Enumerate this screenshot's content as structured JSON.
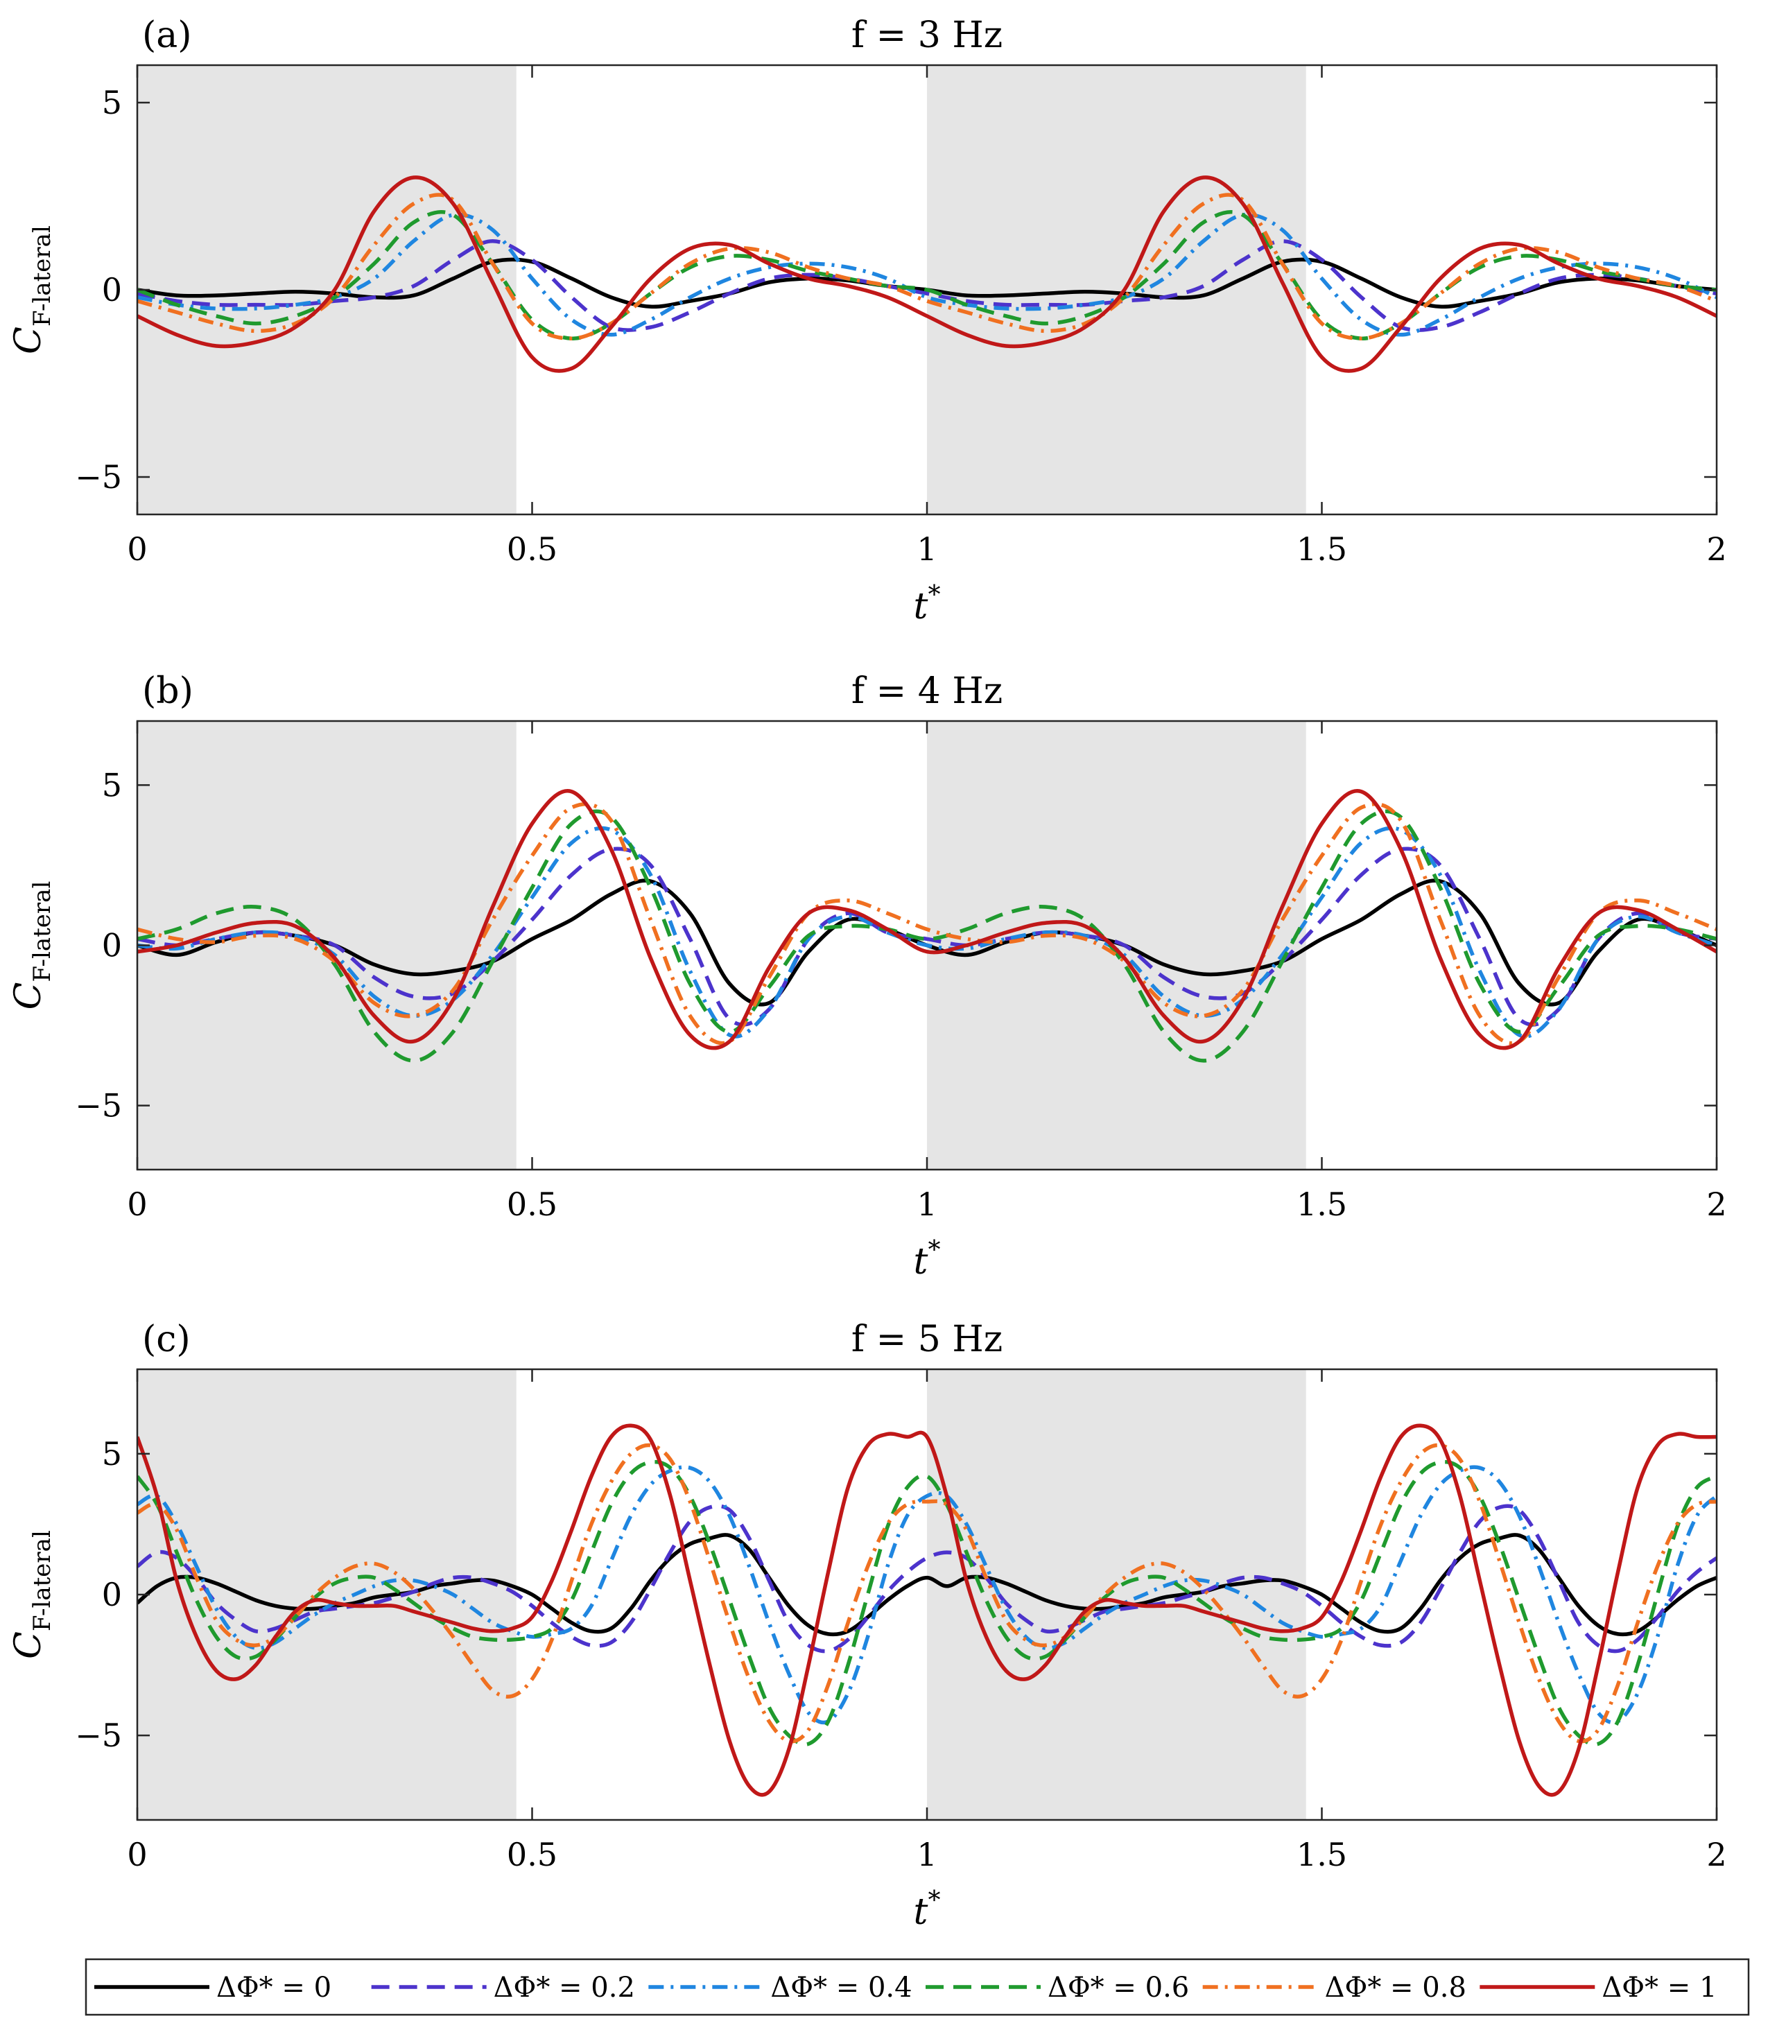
{
  "colors": {
    "shade": "#e5e5e5",
    "dphi_0": "#000000",
    "dphi_0.2": "#4c33cc",
    "dphi_0.4": "#1f86e0",
    "dphi_0.6": "#1f9a2e",
    "dphi_0.8": "#f07020",
    "dphi_1": "#c01818"
  },
  "xlabel_base": "t",
  "xlabel_sup": "*",
  "ylabel_base": "C",
  "ylabel_sub": "F-lateral",
  "legend": [
    {
      "label": "ΔΦ* = 0",
      "color": "#000000",
      "dash": "solid"
    },
    {
      "label": "ΔΦ* = 0.2",
      "color": "#4c33cc",
      "dash": "dash"
    },
    {
      "label": "ΔΦ* = 0.4",
      "color": "#1f86e0",
      "dash": "dashdot"
    },
    {
      "label": "ΔΦ* = 0.6",
      "color": "#1f9a2e",
      "dash": "dash"
    },
    {
      "label": "ΔΦ* = 0.8",
      "color": "#f07020",
      "dash": "dashdot"
    },
    {
      "label": "ΔΦ* = 1",
      "color": "#c01818",
      "dash": "solid"
    }
  ],
  "chart_data": [
    {
      "type": "line",
      "panel": "(a)",
      "title": "f = 3 Hz",
      "xlim": [
        0,
        2
      ],
      "ylim": [
        -6,
        6
      ],
      "xticks": [
        "0",
        "0.5",
        "1",
        "1.5",
        "2"
      ],
      "yticks": [
        "−5",
        "0",
        "5"
      ],
      "shaded_intervals": [
        [
          0,
          0.48
        ],
        [
          1,
          1.48
        ]
      ],
      "x": [
        0,
        0.05,
        0.1,
        0.15,
        0.2,
        0.25,
        0.3,
        0.35,
        0.4,
        0.45,
        0.5,
        0.55,
        0.6,
        0.65,
        0.7,
        0.75,
        0.8,
        0.85,
        0.9,
        0.95,
        1
      ],
      "series": [
        {
          "name": "ΔΦ* = 0",
          "values": [
            0,
            -0.15,
            -0.15,
            -0.1,
            -0.05,
            -0.1,
            -0.2,
            -0.15,
            0.3,
            0.75,
            0.75,
            0.3,
            -0.2,
            -0.45,
            -0.3,
            -0.1,
            0.2,
            0.3,
            0.25,
            0.1,
            0
          ]
        },
        {
          "name": "ΔΦ* = 0.2",
          "values": [
            -0.1,
            -0.3,
            -0.4,
            -0.4,
            -0.4,
            -0.3,
            -0.2,
            0.1,
            0.8,
            1.3,
            0.8,
            -0.2,
            -1.0,
            -1.0,
            -0.6,
            -0.1,
            0.3,
            0.4,
            0.3,
            0.1,
            -0.1
          ]
        },
        {
          "name": "ΔΦ* = 0.4",
          "values": [
            -0.2,
            -0.4,
            -0.5,
            -0.5,
            -0.4,
            -0.2,
            0.3,
            1.3,
            2.0,
            1.6,
            0.3,
            -0.8,
            -1.2,
            -0.8,
            -0.2,
            0.3,
            0.6,
            0.7,
            0.6,
            0.3,
            -0.2
          ]
        },
        {
          "name": "ΔΦ* = 0.6",
          "values": [
            0,
            -0.4,
            -0.7,
            -0.9,
            -0.7,
            -0.2,
            0.7,
            1.8,
            2.0,
            0.7,
            -0.8,
            -1.3,
            -0.9,
            -0.1,
            0.6,
            0.9,
            0.8,
            0.5,
            0.3,
            0.1,
            0
          ]
        },
        {
          "name": "ΔΦ* = 0.8",
          "values": [
            -0.3,
            -0.6,
            -0.9,
            -1.1,
            -0.9,
            -0.2,
            1.2,
            2.3,
            2.4,
            0.7,
            -0.9,
            -1.3,
            -0.9,
            -0.1,
            0.7,
            1.1,
            1.0,
            0.6,
            0.3,
            0.1,
            -0.3
          ]
        },
        {
          "name": "ΔΦ* = 1",
          "values": [
            -0.7,
            -1.2,
            -1.5,
            -1.4,
            -1.0,
            0.0,
            2.1,
            3.0,
            2.3,
            0.2,
            -1.8,
            -2.1,
            -1.0,
            0.3,
            1.1,
            1.2,
            0.7,
            0.3,
            0.1,
            -0.2,
            -0.7
          ]
        }
      ]
    },
    {
      "type": "line",
      "panel": "(b)",
      "title": "f = 4 Hz",
      "xlim": [
        0,
        2
      ],
      "ylim": [
        -7,
        7
      ],
      "xticks": [
        "0",
        "0.5",
        "1",
        "1.5",
        "2"
      ],
      "yticks": [
        "−5",
        "0",
        "5"
      ],
      "shaded_intervals": [
        [
          0,
          0.48
        ],
        [
          1,
          1.48
        ]
      ],
      "x": [
        0,
        0.05,
        0.1,
        0.15,
        0.2,
        0.25,
        0.3,
        0.35,
        0.4,
        0.45,
        0.5,
        0.55,
        0.6,
        0.65,
        0.7,
        0.75,
        0.8,
        0.85,
        0.9,
        0.95,
        1
      ],
      "series": [
        {
          "name": "ΔΦ* = 0",
          "values": [
            0,
            -0.3,
            0.1,
            0.4,
            0.3,
            0,
            -0.6,
            -0.9,
            -0.8,
            -0.5,
            0.2,
            0.8,
            1.6,
            2.0,
            1.0,
            -1.2,
            -1.8,
            -0.2,
            0.8,
            0.5,
            0
          ]
        },
        {
          "name": "ΔΦ* = 0.2",
          "values": [
            0.2,
            0,
            0.2,
            0.4,
            0.3,
            0,
            -1.0,
            -1.6,
            -1.5,
            -0.5,
            0.8,
            2.2,
            3.0,
            2.5,
            0.2,
            -2.3,
            -2.0,
            0.2,
            1.0,
            0.4,
            0.2
          ]
        },
        {
          "name": "ΔΦ* = 0.4",
          "values": [
            0,
            -0.1,
            0.2,
            0.4,
            0.3,
            -0.3,
            -1.6,
            -2.2,
            -1.7,
            -0.3,
            1.5,
            3.2,
            3.6,
            2.2,
            -0.8,
            -2.8,
            -2.0,
            0.2,
            0.9,
            0.4,
            0
          ]
        },
        {
          "name": "ΔΦ* = 0.6",
          "values": [
            0.2,
            0.5,
            1.0,
            1.2,
            0.8,
            -0.6,
            -2.7,
            -3.6,
            -2.7,
            -0.5,
            1.8,
            3.8,
            4.0,
            1.8,
            -1.2,
            -2.7,
            -1.3,
            0.3,
            0.6,
            0.5,
            0.2
          ]
        },
        {
          "name": "ΔΦ* = 0.8",
          "values": [
            0.5,
            0.2,
            0.1,
            0.3,
            0.2,
            -0.5,
            -1.8,
            -2.2,
            -1.4,
            0.8,
            2.8,
            4.3,
            3.9,
            0.8,
            -2.2,
            -3.0,
            -1.0,
            1.0,
            1.4,
            1.0,
            0.5
          ]
        },
        {
          "name": "ΔΦ* = 1",
          "values": [
            -0.2,
            0,
            0.4,
            0.7,
            0.6,
            -0.4,
            -2.2,
            -3.0,
            -1.7,
            1.2,
            3.8,
            4.8,
            3.0,
            -0.4,
            -2.8,
            -3.0,
            -0.7,
            1.0,
            1.1,
            0.5,
            -0.2
          ]
        }
      ]
    },
    {
      "type": "line",
      "panel": "(c)",
      "title": "f = 5 Hz",
      "xlim": [
        0,
        2
      ],
      "ylim": [
        -8,
        8
      ],
      "xticks": [
        "0",
        "0.5",
        "1",
        "1.5",
        "2"
      ],
      "yticks": [
        "−5",
        "0",
        "5"
      ],
      "shaded_intervals": [
        [
          0,
          0.48
        ],
        [
          1,
          1.48
        ]
      ],
      "x": [
        0,
        0.025,
        0.05,
        0.075,
        0.1,
        0.125,
        0.15,
        0.175,
        0.2,
        0.225,
        0.25,
        0.275,
        0.3,
        0.325,
        0.35,
        0.375,
        0.4,
        0.425,
        0.45,
        0.475,
        0.5,
        0.525,
        0.55,
        0.575,
        0.6,
        0.625,
        0.65,
        0.675,
        0.7,
        0.725,
        0.75,
        0.775,
        0.8,
        0.825,
        0.85,
        0.875,
        0.9,
        0.925,
        0.95,
        0.975,
        1
      ],
      "series": [
        {
          "name": "ΔΦ* = 0",
          "values": [
            -0.3,
            0.3,
            0.6,
            0.6,
            0.4,
            0.1,
            -0.2,
            -0.4,
            -0.5,
            -0.5,
            -0.4,
            -0.3,
            -0.1,
            0,
            0.1,
            0.3,
            0.4,
            0.5,
            0.5,
            0.3,
            0,
            -0.5,
            -1.0,
            -1.3,
            -1.2,
            -0.5,
            0.5,
            1.3,
            1.8,
            2.0,
            2.1,
            1.6,
            0.6,
            -0.4,
            -1.1,
            -1.4,
            -1.3,
            -0.8,
            -0.2,
            0.3,
            0.6
          ]
        },
        {
          "name": "ΔΦ* = 0.2",
          "values": [
            1.0,
            1.5,
            1.3,
            0.6,
            -0.3,
            -0.9,
            -1.3,
            -1.2,
            -0.9,
            -0.6,
            -0.5,
            -0.4,
            -0.3,
            -0.1,
            0.1,
            0.4,
            0.6,
            0.6,
            0.4,
            0.1,
            -0.4,
            -1.0,
            -1.5,
            -1.8,
            -1.7,
            -1.0,
            0.2,
            1.5,
            2.6,
            3.1,
            3.0,
            2.0,
            0.5,
            -1.0,
            -1.8,
            -2.0,
            -1.6,
            -0.8,
            0.1,
            0.8,
            1.3
          ]
        },
        {
          "name": "ΔΦ* = 0.4",
          "values": [
            3.2,
            3.5,
            2.5,
            1.0,
            -0.5,
            -1.5,
            -1.9,
            -1.7,
            -1.2,
            -0.7,
            -0.3,
            0,
            0.3,
            0.5,
            0.5,
            0.3,
            0,
            -0.5,
            -1.0,
            -1.3,
            -1.5,
            -1.4,
            -1.2,
            -0.4,
            1.2,
            2.8,
            3.9,
            4.4,
            4.5,
            4.0,
            2.8,
            1.0,
            -1.0,
            -2.8,
            -4.2,
            -4.5,
            -3.5,
            -1.5,
            1.0,
            2.8,
            3.5
          ]
        },
        {
          "name": "ΔΦ* = 0.6",
          "values": [
            4.2,
            3.2,
            1.5,
            -0.2,
            -1.5,
            -2.2,
            -2.2,
            -1.6,
            -0.8,
            -0.1,
            0.4,
            0.6,
            0.6,
            0.2,
            -0.3,
            -0.8,
            -1.2,
            -1.5,
            -1.6,
            -1.6,
            -1.5,
            -1.2,
            -0.2,
            1.5,
            3.2,
            4.3,
            4.7,
            4.5,
            3.5,
            1.8,
            -0.2,
            -2.2,
            -4.0,
            -5.0,
            -5.3,
            -4.5,
            -2.5,
            0,
            2.4,
            3.8,
            4.2
          ]
        },
        {
          "name": "ΔΦ* = 0.8",
          "values": [
            2.9,
            3.2,
            2.3,
            0.6,
            -0.9,
            -1.6,
            -1.8,
            -1.5,
            -0.8,
            0,
            0.6,
            1.0,
            1.1,
            0.8,
            0.2,
            -0.6,
            -1.5,
            -2.5,
            -3.4,
            -3.6,
            -3.0,
            -1.6,
            0.5,
            2.5,
            4.0,
            5.0,
            5.3,
            4.8,
            3.3,
            1.2,
            -1.0,
            -3.0,
            -4.5,
            -5.2,
            -4.8,
            -3.2,
            -1.0,
            1.0,
            2.5,
            3.2,
            3.3
          ]
        },
        {
          "name": "ΔΦ* = 1",
          "values": [
            5.6,
            3.5,
            0.5,
            -1.5,
            -2.7,
            -3.0,
            -2.5,
            -1.5,
            -0.6,
            -0.2,
            -0.3,
            -0.4,
            -0.4,
            -0.4,
            -0.6,
            -0.8,
            -1.0,
            -1.2,
            -1.3,
            -1.2,
            -0.8,
            0.5,
            2.3,
            4.2,
            5.6,
            6.0,
            5.5,
            3.5,
            0.5,
            -2.5,
            -5.2,
            -6.8,
            -7.0,
            -5.5,
            -2.5,
            0.8,
            3.8,
            5.3,
            5.7,
            5.6,
            5.6
          ]
        }
      ]
    }
  ]
}
